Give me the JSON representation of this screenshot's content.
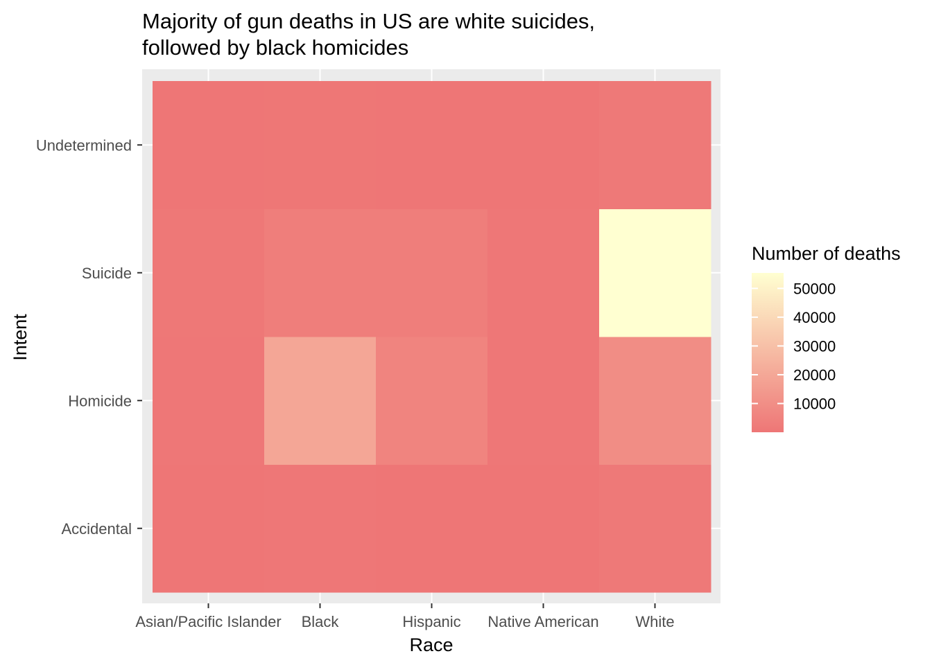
{
  "chart_data": {
    "type": "heatmap",
    "title_lines": [
      "Majority of gun deaths in US are white suicides,",
      "followed by black homicides"
    ],
    "xlabel": "Race",
    "ylabel": "Intent",
    "x_categories": [
      "Asian/Pacific Islander",
      "Black",
      "Hispanic",
      "Native American",
      "White"
    ],
    "y_categories": [
      "Accidental",
      "Homicide",
      "Suicide",
      "Undetermined"
    ],
    "values": [
      {
        "intent": "Accidental",
        "race": "Asian/Pacific Islander",
        "deaths": 12
      },
      {
        "intent": "Accidental",
        "race": "Black",
        "deaths": 328
      },
      {
        "intent": "Accidental",
        "race": "Hispanic",
        "deaths": 145
      },
      {
        "intent": "Accidental",
        "race": "Native American",
        "deaths": 22
      },
      {
        "intent": "Accidental",
        "race": "White",
        "deaths": 1132
      },
      {
        "intent": "Homicide",
        "race": "Asian/Pacific Islander",
        "deaths": 559
      },
      {
        "intent": "Homicide",
        "race": "Black",
        "deaths": 19510
      },
      {
        "intent": "Homicide",
        "race": "Hispanic",
        "deaths": 5634
      },
      {
        "intent": "Homicide",
        "race": "Native American",
        "deaths": 326
      },
      {
        "intent": "Homicide",
        "race": "White",
        "deaths": 9147
      },
      {
        "intent": "Suicide",
        "race": "Asian/Pacific Islander",
        "deaths": 745
      },
      {
        "intent": "Suicide",
        "race": "Black",
        "deaths": 3332
      },
      {
        "intent": "Suicide",
        "race": "Hispanic",
        "deaths": 3171
      },
      {
        "intent": "Suicide",
        "race": "Native American",
        "deaths": 555
      },
      {
        "intent": "Suicide",
        "race": "White",
        "deaths": 55372
      },
      {
        "intent": "Undetermined",
        "race": "Asian/Pacific Islander",
        "deaths": 107
      },
      {
        "intent": "Undetermined",
        "race": "Black",
        "deaths": 258
      },
      {
        "intent": "Undetermined",
        "race": "Hispanic",
        "deaths": 98
      },
      {
        "intent": "Undetermined",
        "race": "Native American",
        "deaths": 14
      },
      {
        "intent": "Undetermined",
        "race": "White",
        "deaths": 1208
      }
    ],
    "legend": {
      "title": "Number of deaths",
      "placement": "right",
      "breaks": [
        10000,
        20000,
        30000,
        40000,
        50000
      ],
      "min": 12,
      "max": 55372
    },
    "color_scale": [
      "#ee7676",
      "#ffffd1"
    ],
    "panel_background": "#ebebeb",
    "grid_color": "#ffffff"
  }
}
